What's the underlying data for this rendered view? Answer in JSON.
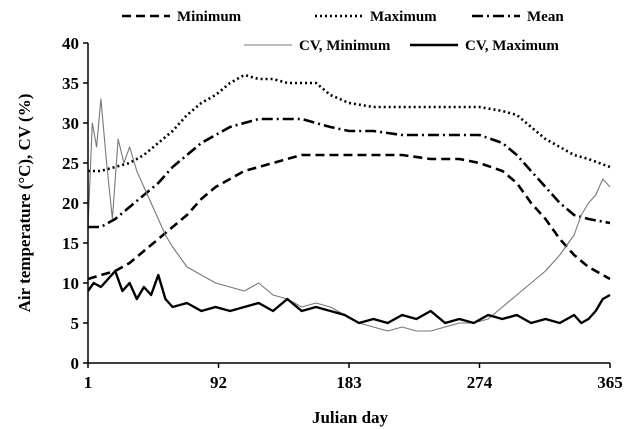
{
  "chart_data": {
    "type": "line",
    "title": "",
    "xlabel": "Julian  day",
    "ylabel": "Air  temperature (°C), CV (%)",
    "xlim": [
      1,
      365
    ],
    "ylim": [
      0,
      40
    ],
    "xticks": [
      1,
      92,
      183,
      274,
      365
    ],
    "xtick_labels": [
      "1",
      "92",
      "183",
      "274",
      "365"
    ],
    "yticks": [
      0,
      5,
      10,
      15,
      20,
      25,
      30,
      35,
      40
    ],
    "ytick_labels": [
      "0",
      "5",
      "10",
      "15",
      "20",
      "25",
      "30",
      "35",
      "40"
    ],
    "grid": false,
    "legend_position": "top",
    "series": [
      {
        "name": "Minimum",
        "style": "dashed",
        "color": "#000000",
        "x": [
          1,
          10,
          20,
          30,
          40,
          50,
          60,
          70,
          80,
          90,
          100,
          110,
          120,
          130,
          140,
          150,
          160,
          170,
          183,
          200,
          220,
          240,
          260,
          274,
          290,
          300,
          310,
          320,
          330,
          340,
          350,
          365
        ],
        "values": [
          10.5,
          11.0,
          11.5,
          12.5,
          14.0,
          15.5,
          17.0,
          18.5,
          20.5,
          22.0,
          23.0,
          24.0,
          24.5,
          25.0,
          25.5,
          26.0,
          26.0,
          26.0,
          26.0,
          26.0,
          26.0,
          25.5,
          25.5,
          25.0,
          24.0,
          22.5,
          20.0,
          18.0,
          15.5,
          13.5,
          12.0,
          10.5
        ]
      },
      {
        "name": "Maximum",
        "style": "dotted",
        "color": "#000000",
        "x": [
          1,
          10,
          20,
          30,
          40,
          50,
          60,
          70,
          80,
          90,
          100,
          110,
          120,
          130,
          140,
          150,
          160,
          170,
          183,
          200,
          220,
          240,
          260,
          274,
          290,
          300,
          310,
          320,
          330,
          340,
          350,
          365
        ],
        "values": [
          24.0,
          24.0,
          24.5,
          25.0,
          26.0,
          27.5,
          29.0,
          31.0,
          32.5,
          33.5,
          35.0,
          36.0,
          35.5,
          35.5,
          35.0,
          35.0,
          35.0,
          33.5,
          32.5,
          32.0,
          32.0,
          32.0,
          32.0,
          32.0,
          31.5,
          31.0,
          29.5,
          28.0,
          27.0,
          26.0,
          25.5,
          24.5
        ]
      },
      {
        "name": "Mean",
        "style": "dash-dot",
        "color": "#000000",
        "x": [
          1,
          10,
          20,
          30,
          40,
          50,
          60,
          70,
          80,
          90,
          100,
          110,
          120,
          130,
          140,
          150,
          160,
          170,
          183,
          200,
          220,
          240,
          260,
          274,
          290,
          300,
          310,
          320,
          330,
          340,
          350,
          365
        ],
        "values": [
          17.0,
          17.0,
          18.0,
          19.5,
          21.0,
          22.5,
          24.5,
          26.0,
          27.5,
          28.5,
          29.5,
          30.0,
          30.5,
          30.5,
          30.5,
          30.5,
          30.0,
          29.5,
          29.0,
          29.0,
          28.5,
          28.5,
          28.5,
          28.5,
          27.5,
          26.0,
          24.0,
          22.0,
          20.0,
          18.5,
          18.0,
          17.5
        ]
      },
      {
        "name": "CV, Minimum",
        "style": "solid-thin",
        "color": "#777777",
        "x": [
          1,
          4,
          7,
          10,
          14,
          18,
          22,
          26,
          30,
          35,
          40,
          45,
          50,
          55,
          60,
          70,
          80,
          90,
          100,
          110,
          120,
          130,
          140,
          150,
          160,
          170,
          180,
          190,
          200,
          210,
          220,
          230,
          240,
          250,
          260,
          270,
          280,
          290,
          300,
          310,
          320,
          330,
          340,
          345,
          350,
          355,
          360,
          365
        ],
        "values": [
          17.0,
          30.0,
          27.0,
          33.0,
          25.0,
          18.0,
          28.0,
          25.0,
          27.0,
          24.0,
          22.0,
          20.0,
          18.0,
          16.0,
          14.5,
          12.0,
          11.0,
          10.0,
          9.5,
          9.0,
          10.0,
          8.5,
          8.0,
          7.0,
          7.5,
          7.0,
          6.0,
          5.0,
          4.5,
          4.0,
          4.5,
          4.0,
          4.0,
          4.5,
          5.0,
          5.0,
          5.5,
          7.0,
          8.5,
          10.0,
          11.5,
          13.5,
          16.0,
          18.5,
          20.0,
          21.0,
          23.0,
          22.0
        ]
      },
      {
        "name": "CV, Maximum",
        "style": "solid-thick",
        "color": "#000000",
        "x": [
          1,
          5,
          10,
          15,
          20,
          25,
          30,
          35,
          40,
          45,
          50,
          55,
          60,
          70,
          80,
          90,
          100,
          110,
          120,
          130,
          140,
          150,
          160,
          170,
          180,
          190,
          200,
          210,
          220,
          230,
          240,
          250,
          260,
          270,
          280,
          290,
          300,
          310,
          320,
          330,
          340,
          345,
          350,
          355,
          360,
          365
        ],
        "values": [
          9.0,
          10.0,
          9.5,
          10.5,
          11.5,
          9.0,
          10.0,
          8.0,
          9.5,
          8.5,
          11.0,
          8.0,
          7.0,
          7.5,
          6.5,
          7.0,
          6.5,
          7.0,
          7.5,
          6.5,
          8.0,
          6.5,
          7.0,
          6.5,
          6.0,
          5.0,
          5.5,
          5.0,
          6.0,
          5.5,
          6.5,
          5.0,
          5.5,
          5.0,
          6.0,
          5.5,
          6.0,
          5.0,
          5.5,
          5.0,
          6.0,
          5.0,
          5.5,
          6.5,
          8.0,
          8.5
        ]
      }
    ]
  }
}
